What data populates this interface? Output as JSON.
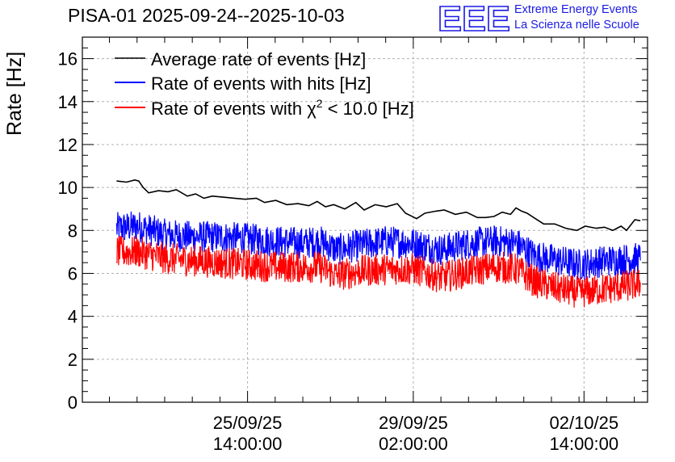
{
  "header": {
    "title": "PISA-01 2025-09-24--2025-10-03",
    "logo_letters": "EEE",
    "logo_line1": "Extreme Energy Events",
    "logo_line2": "La Scienza nelle Scuole"
  },
  "colors": {
    "black": "#000000",
    "blue": "#0000ff",
    "red": "#ff0000",
    "logo": "#1a1ae6"
  },
  "chart_data": {
    "type": "line",
    "title": "PISA-01 2025-09-24--2025-10-03",
    "ylabel": "Rate [Hz]",
    "xlabel": "",
    "ylim": [
      0,
      17
    ],
    "xlim_days": [
      0,
      10.23
    ],
    "grid": true,
    "legend_position": "top-left",
    "ytick_labels": [
      "0",
      "2",
      "4",
      "6",
      "8",
      "10",
      "12",
      "14",
      "16"
    ],
    "xticks": [
      {
        "day": 2.99,
        "line1": "25/09/25",
        "line2": "14:00:00"
      },
      {
        "day": 5.99,
        "line1": "29/09/25",
        "line2": "02:00:00"
      },
      {
        "day": 9.08,
        "line1": "02/10/25",
        "line2": "14:00:00"
      }
    ],
    "legend": [
      {
        "name": "Average rate of events [Hz]",
        "color": "#000000"
      },
      {
        "name": "Rate of events with hits [Hz]",
        "color": "#0000ff"
      },
      {
        "name": "Rate of events with χ² < 10.0 [Hz]",
        "color": "#ff0000",
        "prefix": "Rate of events with ",
        "chi": "χ",
        "sup": "2",
        "suffix": " < 10.0 [Hz]"
      }
    ],
    "series": [
      {
        "name": "Average rate of events [Hz]",
        "color": "#000000",
        "x": [
          0.62,
          0.8,
          0.95,
          1.02,
          1.1,
          1.2,
          1.38,
          1.55,
          1.7,
          1.9,
          2.05,
          2.2,
          2.35,
          2.55,
          2.75,
          2.95,
          3.15,
          3.3,
          3.5,
          3.7,
          3.9,
          4.1,
          4.25,
          4.4,
          4.55,
          4.75,
          4.95,
          5.1,
          5.3,
          5.5,
          5.7,
          5.85,
          6.05,
          6.2,
          6.4,
          6.55,
          6.75,
          6.95,
          7.15,
          7.3,
          7.45,
          7.6,
          7.75,
          7.85,
          7.95,
          8.05,
          8.2,
          8.35,
          8.55,
          8.75,
          8.95,
          9.1,
          9.3,
          9.45,
          9.6,
          9.75,
          9.85,
          10.0,
          10.1
        ],
        "values": [
          10.3,
          10.25,
          10.35,
          10.3,
          10.0,
          9.75,
          9.85,
          9.8,
          9.9,
          9.6,
          9.7,
          9.5,
          9.6,
          9.55,
          9.5,
          9.45,
          9.5,
          9.3,
          9.4,
          9.2,
          9.25,
          9.15,
          9.35,
          9.1,
          9.2,
          9.0,
          9.3,
          8.95,
          9.2,
          9.1,
          9.25,
          8.8,
          8.55,
          8.8,
          8.9,
          8.95,
          8.75,
          8.85,
          8.6,
          8.6,
          8.65,
          8.85,
          8.75,
          9.05,
          8.9,
          8.8,
          8.55,
          8.3,
          8.3,
          8.1,
          8.0,
          8.2,
          8.1,
          8.15,
          8.0,
          8.2,
          8.0,
          8.5,
          8.45
        ]
      },
      {
        "name": "Rate of events with hits [Hz]",
        "color": "#0000ff",
        "x": [
          0.62,
          1.0,
          1.5,
          2.0,
          2.5,
          3.0,
          3.5,
          4.0,
          4.3,
          4.6,
          5.0,
          5.5,
          6.0,
          6.5,
          7.0,
          7.5,
          7.85,
          8.2,
          8.6,
          9.0,
          9.5,
          10.1
        ],
        "values": [
          8.1,
          8.2,
          7.8,
          7.7,
          7.7,
          7.6,
          7.5,
          7.4,
          7.5,
          7.1,
          7.3,
          7.5,
          7.4,
          7.1,
          7.4,
          7.5,
          7.4,
          6.8,
          6.6,
          6.4,
          6.6,
          6.7
        ],
        "noise_amplitude_hz": 0.75
      },
      {
        "name": "Rate of events with χ² < 10.0 [Hz]",
        "color": "#ff0000",
        "x": [
          0.62,
          1.0,
          1.5,
          2.0,
          2.5,
          3.0,
          3.5,
          4.0,
          4.3,
          4.6,
          5.0,
          5.5,
          6.0,
          6.5,
          7.0,
          7.5,
          7.85,
          8.2,
          8.6,
          9.0,
          9.5,
          10.1
        ],
        "values": [
          7.0,
          7.0,
          6.7,
          6.6,
          6.5,
          6.4,
          6.3,
          6.3,
          6.3,
          5.9,
          6.1,
          6.2,
          6.2,
          5.8,
          6.1,
          6.3,
          6.2,
          5.6,
          5.3,
          5.1,
          5.3,
          5.5
        ],
        "noise_amplitude_hz": 0.75
      }
    ]
  }
}
